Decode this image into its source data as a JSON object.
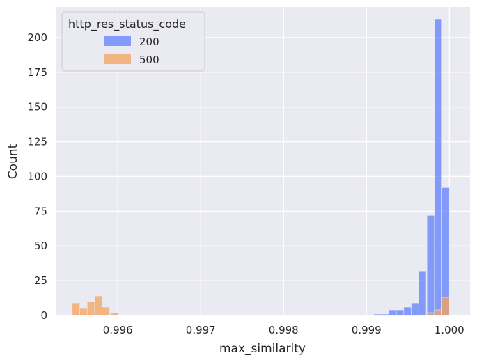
{
  "chart_data": {
    "type": "bar",
    "title": "",
    "xlabel": "max_similarity",
    "ylabel": "Count",
    "xlim": [
      0.99525,
      1.00025
    ],
    "ylim": [
      0,
      222
    ],
    "xticks": [
      0.996,
      0.997,
      0.998,
      0.999,
      1.0
    ],
    "xtick_labels": [
      "0.996",
      "0.997",
      "0.998",
      "0.999",
      "1.000"
    ],
    "yticks": [
      0,
      25,
      50,
      75,
      100,
      125,
      150,
      175,
      200
    ],
    "ytick_labels": [
      "0",
      "25",
      "50",
      "75",
      "100",
      "125",
      "150",
      "175",
      "200"
    ],
    "grid": true,
    "legend": {
      "title": "http_res_status_code",
      "placement": "top-left"
    },
    "bin_width": 9.11e-05,
    "series": [
      {
        "name": "200",
        "color": "#5f7ffc",
        "bins": [
          {
            "x0": 0.99909,
            "count": 1
          },
          {
            "x0": 0.99918,
            "count": 1
          },
          {
            "x0": 0.99927,
            "count": 4
          },
          {
            "x0": 0.99936,
            "count": 4
          },
          {
            "x0": 0.99945,
            "count": 6
          },
          {
            "x0": 0.99954,
            "count": 9
          },
          {
            "x0": 0.99963,
            "count": 32
          },
          {
            "x0": 0.99973,
            "count": 72
          },
          {
            "x0": 0.99982,
            "count": 213
          },
          {
            "x0": 0.99991,
            "count": 92
          }
        ]
      },
      {
        "name": "500",
        "color": "#f5a25d",
        "bins": [
          {
            "x0": 0.99545,
            "count": 9
          },
          {
            "x0": 0.99554,
            "count": 5
          },
          {
            "x0": 0.99563,
            "count": 10
          },
          {
            "x0": 0.99572,
            "count": 14
          },
          {
            "x0": 0.99581,
            "count": 6
          },
          {
            "x0": 0.99591,
            "count": 2
          },
          {
            "x0": 0.99973,
            "count": 2
          },
          {
            "x0": 0.99982,
            "count": 4
          },
          {
            "x0": 0.99991,
            "count": 13
          }
        ]
      }
    ]
  }
}
